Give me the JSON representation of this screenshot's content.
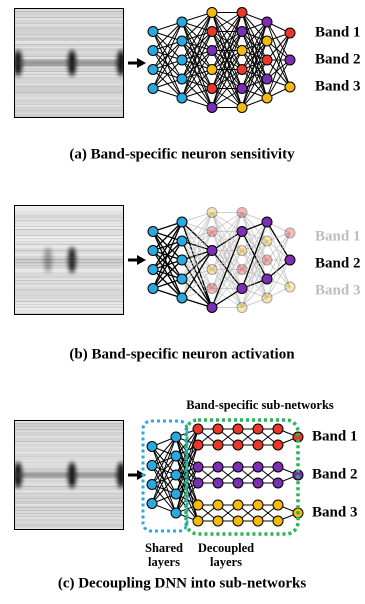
{
  "panels": [
    {
      "caption": "(a) Band-specific neuron sensitivity",
      "bands": [
        "Band 1",
        "Band 2",
        "Band 3"
      ]
    },
    {
      "caption": "(b) Band-specific neuron activation",
      "bands": [
        "Band 1",
        "Band 2",
        "Band 3"
      ]
    },
    {
      "caption": "(c) Decoupling DNN into sub-networks",
      "bands": [
        "Band 1",
        "Band 2",
        "Band 3"
      ],
      "subnetworks_title": "Band-specific sub-networks",
      "shared_label": [
        "Shared",
        "layers"
      ],
      "decoupled_label": [
        "Decoupled",
        "layers"
      ]
    }
  ]
}
